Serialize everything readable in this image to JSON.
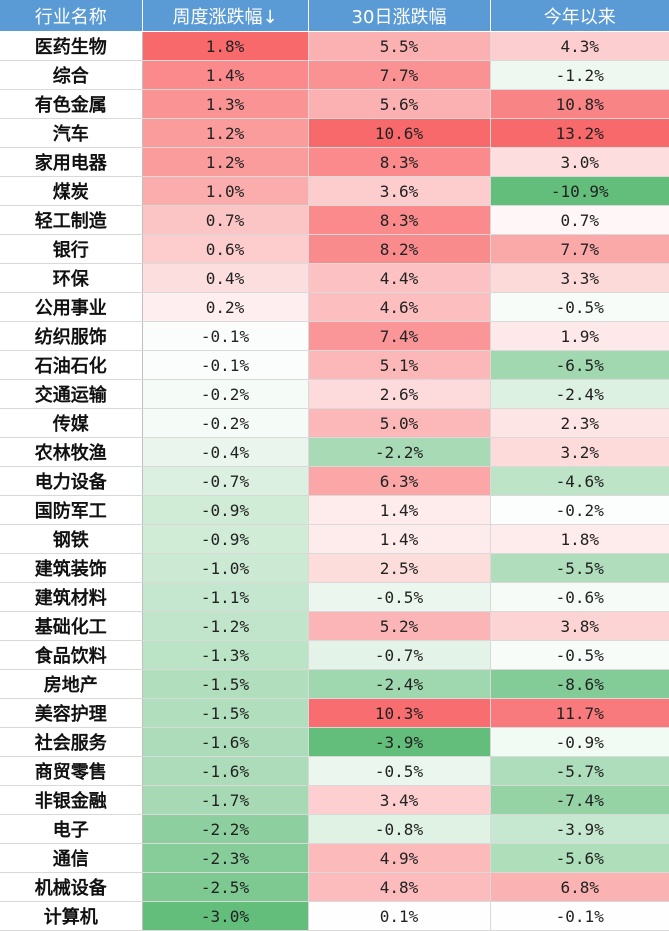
{
  "header": {
    "columns": [
      "行业名称",
      "周度涨跌幅↓",
      "30日涨跌幅",
      "今年以来"
    ]
  },
  "colors": {
    "header_bg": "#5b9bd5",
    "positive": "#f8696b",
    "negative": "#63be7b",
    "neutral": "#ffffff"
  },
  "rows": [
    {
      "name": "医药生物",
      "weekly": "1.8%",
      "d30": "5.5%",
      "ytd": "4.3%"
    },
    {
      "name": "综合",
      "weekly": "1.4%",
      "d30": "7.7%",
      "ytd": "-1.2%"
    },
    {
      "name": "有色金属",
      "weekly": "1.3%",
      "d30": "5.6%",
      "ytd": "10.8%"
    },
    {
      "name": "汽车",
      "weekly": "1.2%",
      "d30": "10.6%",
      "ytd": "13.2%"
    },
    {
      "name": "家用电器",
      "weekly": "1.2%",
      "d30": "8.3%",
      "ytd": "3.0%"
    },
    {
      "name": "煤炭",
      "weekly": "1.0%",
      "d30": "3.6%",
      "ytd": "-10.9%"
    },
    {
      "name": "轻工制造",
      "weekly": "0.7%",
      "d30": "8.3%",
      "ytd": "0.7%"
    },
    {
      "name": "银行",
      "weekly": "0.6%",
      "d30": "8.2%",
      "ytd": "7.7%"
    },
    {
      "name": "环保",
      "weekly": "0.4%",
      "d30": "4.4%",
      "ytd": "3.3%"
    },
    {
      "name": "公用事业",
      "weekly": "0.2%",
      "d30": "4.6%",
      "ytd": "-0.5%"
    },
    {
      "name": "纺织服饰",
      "weekly": "-0.1%",
      "d30": "7.4%",
      "ytd": "1.9%"
    },
    {
      "name": "石油石化",
      "weekly": "-0.1%",
      "d30": "5.1%",
      "ytd": "-6.5%"
    },
    {
      "name": "交通运输",
      "weekly": "-0.2%",
      "d30": "2.6%",
      "ytd": "-2.4%"
    },
    {
      "name": "传媒",
      "weekly": "-0.2%",
      "d30": "5.0%",
      "ytd": "2.3%"
    },
    {
      "name": "农林牧渔",
      "weekly": "-0.4%",
      "d30": "-2.2%",
      "ytd": "3.2%"
    },
    {
      "name": "电力设备",
      "weekly": "-0.7%",
      "d30": "6.3%",
      "ytd": "-4.6%"
    },
    {
      "name": "国防军工",
      "weekly": "-0.9%",
      "d30": "1.4%",
      "ytd": "-0.2%"
    },
    {
      "name": "钢铁",
      "weekly": "-0.9%",
      "d30": "1.4%",
      "ytd": "1.8%"
    },
    {
      "name": "建筑装饰",
      "weekly": "-1.0%",
      "d30": "2.5%",
      "ytd": "-5.5%"
    },
    {
      "name": "建筑材料",
      "weekly": "-1.1%",
      "d30": "-0.5%",
      "ytd": "-0.6%"
    },
    {
      "name": "基础化工",
      "weekly": "-1.2%",
      "d30": "5.2%",
      "ytd": "3.8%"
    },
    {
      "name": "食品饮料",
      "weekly": "-1.3%",
      "d30": "-0.7%",
      "ytd": "-0.5%"
    },
    {
      "name": "房地产",
      "weekly": "-1.5%",
      "d30": "-2.4%",
      "ytd": "-8.6%"
    },
    {
      "name": "美容护理",
      "weekly": "-1.5%",
      "d30": "10.3%",
      "ytd": "11.7%"
    },
    {
      "name": "社会服务",
      "weekly": "-1.6%",
      "d30": "-3.9%",
      "ytd": "-0.9%"
    },
    {
      "name": "商贸零售",
      "weekly": "-1.6%",
      "d30": "-0.5%",
      "ytd": "-5.7%"
    },
    {
      "name": "非银金融",
      "weekly": "-1.7%",
      "d30": "3.4%",
      "ytd": "-7.4%"
    },
    {
      "name": "电子",
      "weekly": "-2.2%",
      "d30": "-0.8%",
      "ytd": "-3.9%"
    },
    {
      "name": "通信",
      "weekly": "-2.3%",
      "d30": "4.9%",
      "ytd": "-5.6%"
    },
    {
      "name": "机械设备",
      "weekly": "-2.5%",
      "d30": "4.8%",
      "ytd": "6.8%"
    },
    {
      "name": "计算机",
      "weekly": "-3.0%",
      "d30": "0.1%",
      "ytd": "-0.1%"
    }
  ]
}
